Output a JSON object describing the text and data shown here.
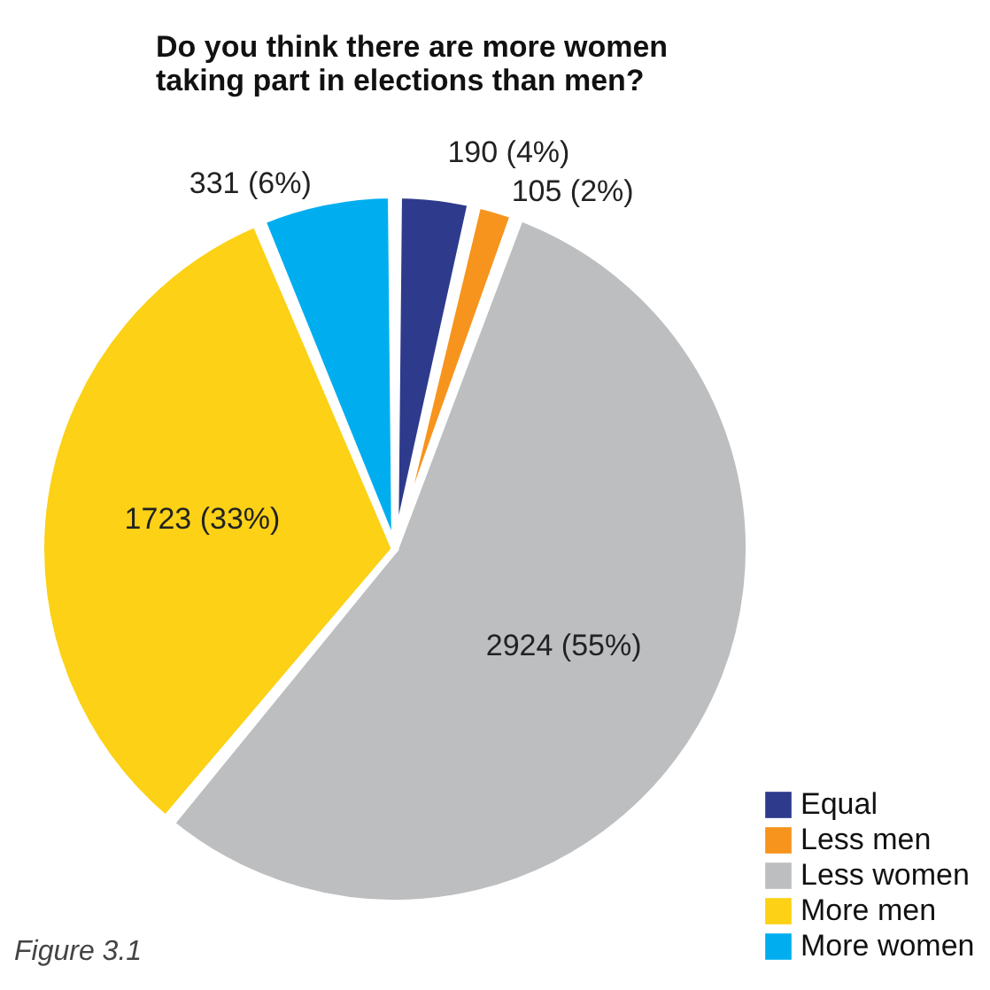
{
  "chart_data": {
    "type": "pie",
    "title": "Do you think there are more women taking part in elections than men?",
    "categories": [
      "Equal",
      "Less men",
      "Less women",
      "More men",
      "More women"
    ],
    "values": [
      190,
      105,
      2924,
      1723,
      331
    ],
    "value_labels": [
      "190 (4%)",
      "105 (2%)",
      "2924 (55%)",
      "1723 (33%)",
      "331 (6%)"
    ],
    "colors": [
      "#2e3a8c",
      "#f7941d",
      "#bcbec0",
      "#fcd116",
      "#00aeef"
    ],
    "legend": "bottom right",
    "annotations": [
      "Figure 3.1"
    ]
  }
}
